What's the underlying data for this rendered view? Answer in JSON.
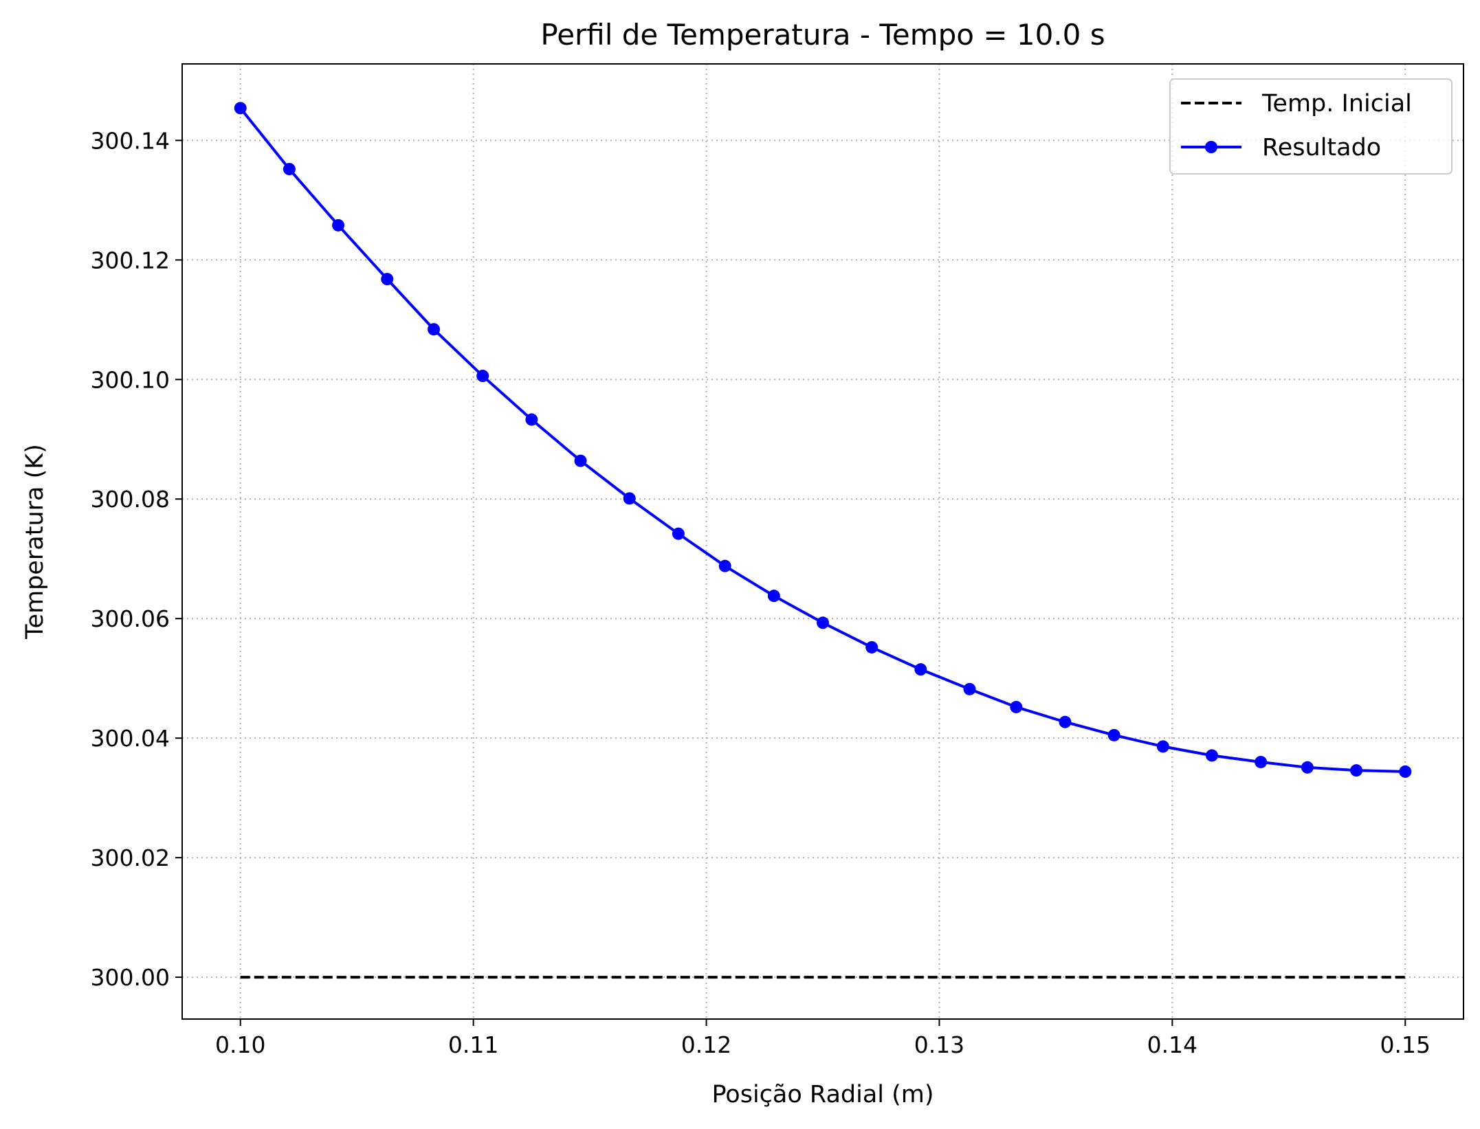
{
  "chart_data": {
    "type": "line",
    "title": "Perfil de Temperatura - Tempo = 10.0 s",
    "xlabel": "Posição Radial (m)",
    "ylabel": "Temperatura (K)",
    "xlim": [
      0.0975,
      0.1525
    ],
    "ylim": [
      299.993,
      300.1528
    ],
    "xticks": [
      0.1,
      0.11,
      0.12,
      0.13,
      0.14,
      0.15
    ],
    "xtick_labels": [
      "0.10",
      "0.11",
      "0.12",
      "0.13",
      "0.14",
      "0.15"
    ],
    "yticks": [
      300.0,
      300.02,
      300.04,
      300.06,
      300.08,
      300.1,
      300.12,
      300.14
    ],
    "ytick_labels": [
      "300.00",
      "300.02",
      "300.04",
      "300.06",
      "300.08",
      "300.10",
      "300.12",
      "300.14"
    ],
    "grid": true,
    "legend_position": "top-right",
    "series": [
      {
        "name": "Temp. Inicial",
        "style": "dashed",
        "marker": false,
        "color": "#000000",
        "x": [
          0.1,
          0.15
        ],
        "y": [
          300.0,
          300.0
        ]
      },
      {
        "name": "Resultado",
        "style": "solid",
        "marker": true,
        "color": "#0000ff",
        "x": [
          0.1,
          0.1021,
          0.1042,
          0.1063,
          0.1083,
          0.1104,
          0.1125,
          0.1146,
          0.1167,
          0.1188,
          0.1208,
          0.1229,
          0.125,
          0.1271,
          0.1292,
          0.1313,
          0.1333,
          0.1354,
          0.1375,
          0.1396,
          0.1417,
          0.1438,
          0.1458,
          0.1479,
          0.15
        ],
        "y": [
          300.1454,
          300.1352,
          300.1258,
          300.1168,
          300.1084,
          300.1006,
          300.0933,
          300.0864,
          300.0801,
          300.0742,
          300.0688,
          300.0638,
          300.0593,
          300.0552,
          300.0515,
          300.0482,
          300.0452,
          300.0427,
          300.0405,
          300.0386,
          300.0371,
          300.036,
          300.0351,
          300.0346,
          300.0344
        ]
      }
    ]
  }
}
